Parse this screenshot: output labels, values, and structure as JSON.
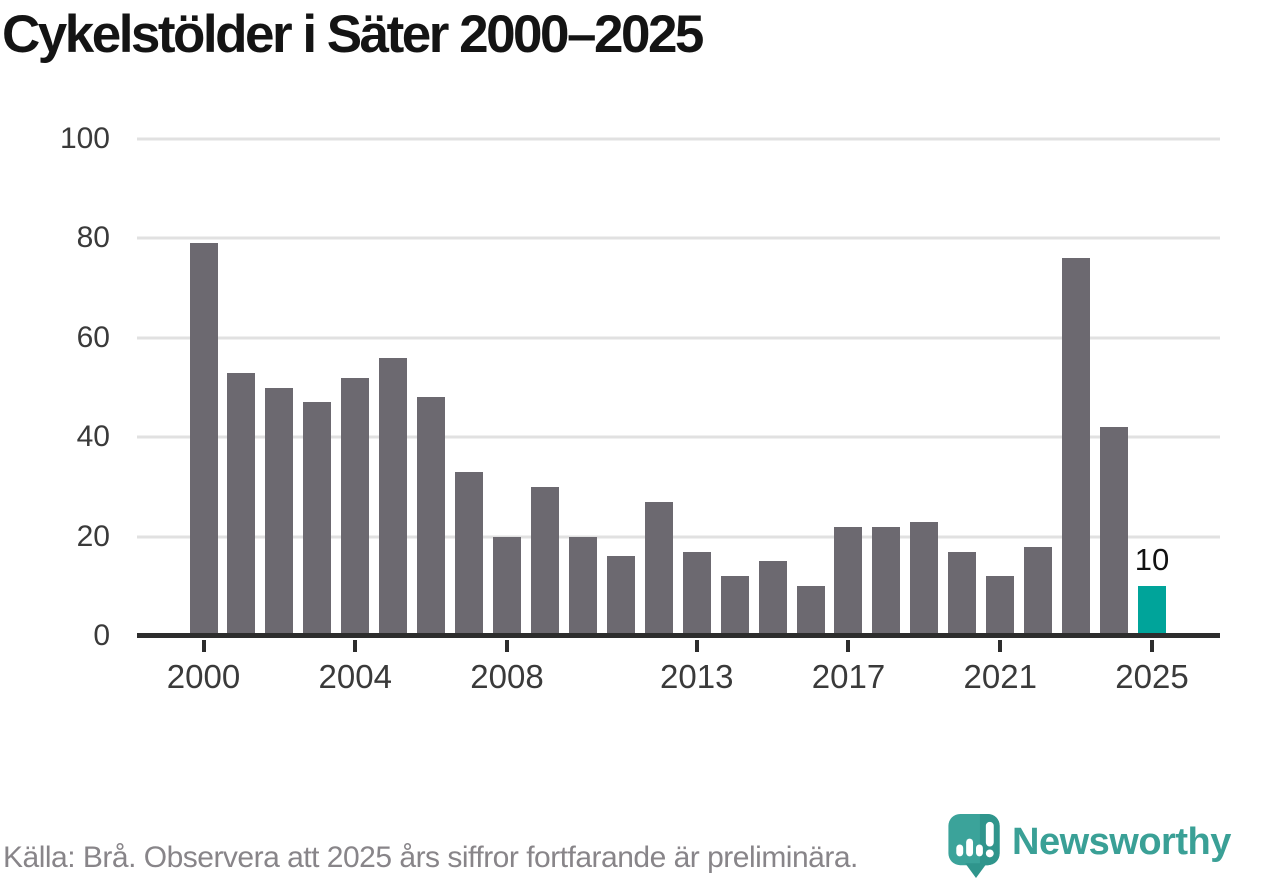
{
  "title": "Cykelstölder i Säter 2000–2025",
  "footer": {
    "source_note": "Källa: Brå. Observera att 2025 års siffror fortfarande är preliminära."
  },
  "brand": {
    "name": "Newsworthy",
    "icon": "newsworthy-pin-barchart-icon",
    "text_color": "#3aa096",
    "icon_color": "#3ba39a",
    "icon_shade_color": "#2f958c"
  },
  "colors": {
    "bar": "#6c6970",
    "highlight": "#00a49a",
    "grid": "#e1e1e1",
    "axis": "#2d2d2d",
    "axis_text": "#3a3a3a",
    "title_text": "#141414",
    "footer_text": "#888589"
  },
  "chart_data": {
    "type": "bar",
    "title": "Cykelstölder i Säter 2000–2025",
    "x": [
      2000,
      2001,
      2002,
      2003,
      2004,
      2005,
      2006,
      2007,
      2008,
      2009,
      2010,
      2011,
      2012,
      2013,
      2014,
      2015,
      2016,
      2017,
      2018,
      2019,
      2020,
      2021,
      2022,
      2023,
      2024,
      2025
    ],
    "values": [
      79,
      53,
      50,
      47,
      52,
      56,
      48,
      33,
      20,
      30,
      20,
      16,
      27,
      17,
      12,
      15,
      10,
      22,
      22,
      23,
      17,
      12,
      18,
      76,
      42,
      10
    ],
    "highlight_index": 25,
    "highlight_value_label": "10",
    "bar_color": "#6c6970",
    "highlight_color": "#00a49a",
    "xlabel": "",
    "ylabel": "",
    "ylim": [
      0,
      100
    ],
    "yticks": [
      0,
      20,
      40,
      60,
      80,
      100
    ],
    "xticks": [
      2000,
      2004,
      2008,
      2013,
      2017,
      2021,
      2025
    ],
    "grid": true,
    "legend": false
  }
}
